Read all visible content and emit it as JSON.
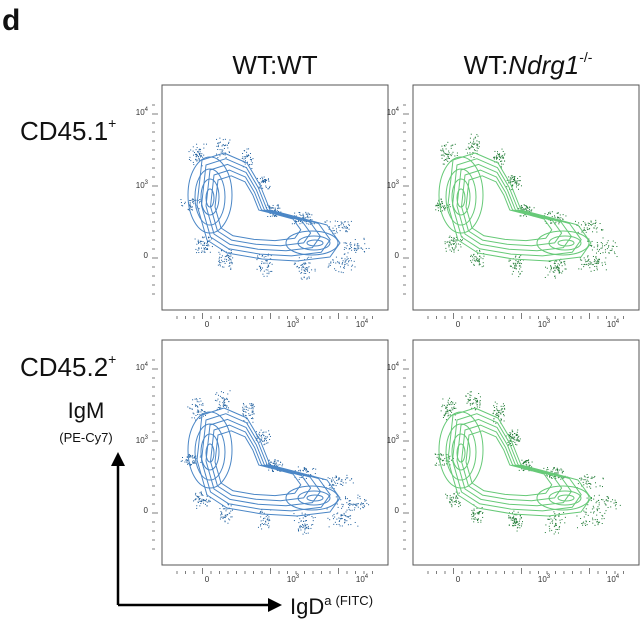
{
  "panel_label": "d",
  "columns": [
    {
      "label": "WT:WT"
    },
    {
      "label": "WT:",
      "italic": "Ndrg1",
      "sup": "-/-"
    }
  ],
  "rows": [
    {
      "label": "CD45.1",
      "sup": "+"
    },
    {
      "label": "CD45.2",
      "sup": "+"
    }
  ],
  "y_axis": {
    "label": "IgM",
    "sublabel": "(PE-Cy7)"
  },
  "x_axis": {
    "label": "IgD",
    "sup": "a",
    "sublabel": "(FITC)"
  },
  "ticks": {
    "y": [
      {
        "base": "10",
        "exp": "4"
      },
      {
        "base": "10",
        "exp": "3"
      },
      {
        "base": "0"
      }
    ],
    "x": [
      {
        "base": "0"
      },
      {
        "base": "10",
        "exp": "3"
      },
      {
        "base": "10",
        "exp": "4"
      }
    ]
  }
}
